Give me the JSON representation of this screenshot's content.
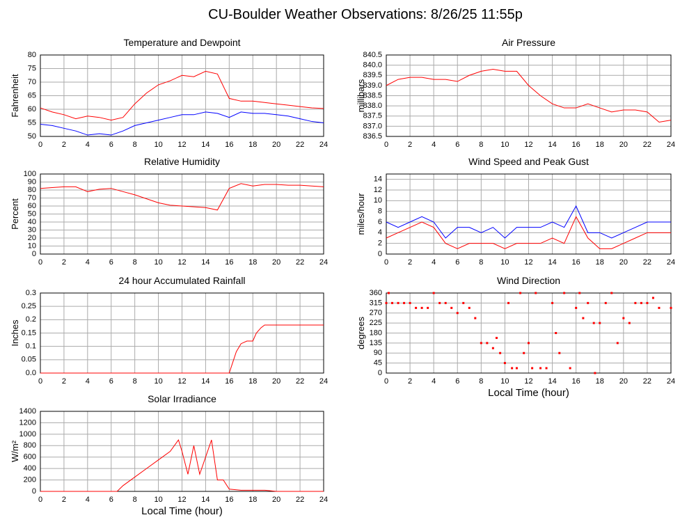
{
  "title": "CU-Boulder Weather Observations: 8/26/25 11:55p",
  "chart_data": [
    {
      "type": "line",
      "title": "Temperature and Dewpoint",
      "ylabel": "Fahrenheit",
      "x": [
        0,
        1,
        2,
        3,
        4,
        5,
        6,
        7,
        8,
        9,
        10,
        11,
        12,
        13,
        14,
        15,
        16,
        17,
        18,
        19,
        20,
        21,
        22,
        23,
        24
      ],
      "series": [
        {
          "color": "#ff0000",
          "values": [
            60.5,
            59,
            58,
            56.5,
            57.5,
            57,
            56,
            57,
            62,
            66,
            69,
            70.5,
            72.5,
            72,
            74,
            73,
            64,
            63,
            63,
            62.5,
            62,
            61.5,
            61,
            60.5,
            60.3
          ]
        },
        {
          "color": "#0000ff",
          "values": [
            54.5,
            54,
            53,
            52,
            50.5,
            51,
            50.5,
            52,
            54,
            55,
            56,
            57,
            58,
            58,
            59,
            58.5,
            57,
            59,
            58.5,
            58.5,
            58,
            57.5,
            56.5,
            55.5,
            55
          ]
        }
      ],
      "xlim": [
        0,
        24
      ],
      "xticks": [
        0,
        2,
        4,
        6,
        8,
        10,
        12,
        14,
        16,
        18,
        20,
        22,
        24
      ],
      "ylim": [
        50,
        80
      ],
      "yticks": [
        50,
        55,
        60,
        65,
        70,
        75,
        80
      ],
      "grid": true
    },
    {
      "type": "line",
      "title": "Air Pressure",
      "ylabel": "millibars",
      "x": [
        0,
        1,
        2,
        3,
        4,
        5,
        6,
        7,
        8,
        9,
        10,
        11,
        12,
        13,
        14,
        15,
        16,
        17,
        18,
        19,
        20,
        21,
        22,
        23,
        24
      ],
      "series": [
        {
          "color": "#ff0000",
          "values": [
            839.0,
            839.3,
            839.4,
            839.4,
            839.3,
            839.3,
            839.2,
            839.5,
            839.7,
            839.8,
            839.7,
            839.7,
            839.0,
            838.5,
            838.1,
            837.9,
            837.9,
            838.1,
            837.9,
            837.7,
            837.8,
            837.8,
            837.7,
            837.2,
            837.3
          ]
        }
      ],
      "xlim": [
        0,
        24
      ],
      "xticks": [
        0,
        2,
        4,
        6,
        8,
        10,
        12,
        14,
        16,
        18,
        20,
        22,
        24
      ],
      "ylim": [
        836.5,
        840.5
      ],
      "yticks": [
        836.5,
        {
          "value": 837,
          "label": "837.0"
        },
        837.5,
        {
          "value": 838,
          "label": "838.0"
        },
        838.5,
        {
          "value": 839,
          "label": "839.0"
        },
        839.5,
        {
          "value": 840,
          "label": "840.0"
        },
        840.5
      ],
      "grid": true
    },
    {
      "type": "line",
      "title": "Relative Humidity",
      "ylabel": "Percent",
      "x": [
        0,
        1,
        2,
        3,
        4,
        5,
        6,
        7,
        8,
        9,
        10,
        11,
        12,
        13,
        14,
        15,
        16,
        17,
        18,
        19,
        20,
        21,
        22,
        23,
        24
      ],
      "series": [
        {
          "color": "#ff0000",
          "values": [
            82,
            83,
            84,
            84,
            78,
            81,
            82,
            78,
            74,
            69,
            64,
            61,
            60,
            59,
            58,
            55,
            82,
            88,
            85,
            87,
            87,
            86,
            86,
            85,
            84
          ]
        }
      ],
      "xlim": [
        0,
        24
      ],
      "xticks": [
        0,
        2,
        4,
        6,
        8,
        10,
        12,
        14,
        16,
        18,
        20,
        22,
        24
      ],
      "ylim": [
        0,
        100
      ],
      "yticks": [
        0,
        10,
        20,
        30,
        40,
        50,
        60,
        70,
        80,
        90,
        100
      ],
      "grid": true
    },
    {
      "type": "line",
      "title": "Wind Speed and Peak Gust",
      "ylabel": "miles/hour",
      "x": [
        0,
        1,
        2,
        3,
        4,
        5,
        6,
        7,
        8,
        9,
        10,
        11,
        12,
        13,
        14,
        15,
        16,
        17,
        18,
        19,
        20,
        21,
        22,
        23,
        24
      ],
      "series": [
        {
          "color": "#0000ff",
          "values": [
            6,
            5,
            6,
            7,
            6,
            3,
            5,
            5,
            4,
            5,
            3,
            5,
            5,
            5,
            6,
            5,
            9,
            4,
            4,
            3,
            4,
            5,
            6,
            6,
            6
          ]
        },
        {
          "color": "#ff0000",
          "values": [
            3,
            4,
            5,
            6,
            5,
            2,
            1,
            2,
            2,
            2,
            1,
            2,
            2,
            2,
            3,
            2,
            7,
            3,
            1,
            1,
            2,
            3,
            4,
            4,
            4
          ]
        }
      ],
      "xlim": [
        0,
        24
      ],
      "xticks": [
        0,
        2,
        4,
        6,
        8,
        10,
        12,
        14,
        16,
        18,
        20,
        22,
        24
      ],
      "ylim": [
        0,
        15
      ],
      "yticks": [
        0,
        2,
        4,
        6,
        8,
        10,
        12,
        14
      ],
      "grid": true
    },
    {
      "type": "line",
      "title": "24 hour Accumulated Rainfall",
      "ylabel": "Inches",
      "x": [
        0,
        16,
        16.3,
        16.6,
        17,
        17.5,
        18,
        18.3,
        18.7,
        19,
        24
      ],
      "series": [
        {
          "color": "#ff0000",
          "values": [
            0,
            0,
            0.04,
            0.08,
            0.11,
            0.12,
            0.12,
            0.15,
            0.17,
            0.18,
            0.18
          ]
        }
      ],
      "xlim": [
        0,
        24
      ],
      "xticks": [
        0,
        2,
        4,
        6,
        8,
        10,
        12,
        14,
        16,
        18,
        20,
        22,
        24
      ],
      "ylim": [
        0,
        0.3
      ],
      "yticks": [
        {
          "value": 0,
          "label": "0.0"
        },
        0.05,
        0.1,
        0.15,
        0.2,
        0.25,
        0.3
      ],
      "grid": true
    },
    {
      "type": "scatter",
      "title": "Wind Direction",
      "ylabel": "degrees",
      "xlabel": "Local Time (hour)",
      "x": [
        0,
        0.2,
        0.5,
        1,
        1.5,
        2,
        2.5,
        3,
        3.5,
        4,
        4.5,
        5,
        5.5,
        6,
        6.5,
        7,
        7.5,
        8,
        8.5,
        9,
        9.3,
        9.6,
        10,
        10.3,
        10.6,
        11,
        11.3,
        11.6,
        12,
        12.3,
        12.6,
        13,
        13.5,
        14,
        14.3,
        14.6,
        15,
        15.5,
        16,
        16.3,
        16.6,
        17,
        17.5,
        17.6,
        18,
        18.5,
        19,
        19.5,
        20,
        20.5,
        21,
        21.5,
        22,
        22.5,
        23,
        24
      ],
      "values": [
        315,
        360,
        315,
        315,
        315,
        315,
        293,
        293,
        293,
        360,
        315,
        315,
        293,
        270,
        315,
        293,
        247,
        135,
        135,
        112,
        158,
        90,
        45,
        315,
        22,
        22,
        360,
        90,
        135,
        22,
        360,
        22,
        22,
        315,
        180,
        90,
        360,
        22,
        293,
        360,
        247,
        315,
        225,
        0,
        225,
        315,
        360,
        135,
        247,
        225,
        315,
        315,
        315,
        338,
        293,
        293
      ],
      "color": "#ff0000",
      "xlim": [
        0,
        24
      ],
      "xticks": [
        0,
        2,
        4,
        6,
        8,
        10,
        12,
        14,
        16,
        18,
        20,
        22,
        24
      ],
      "ylim": [
        0,
        360
      ],
      "yticks": [
        0,
        45,
        90,
        135,
        180,
        225,
        270,
        315,
        360
      ],
      "grid": true
    },
    {
      "type": "line",
      "title": "Solar Irradiance",
      "ylabel": "W/m²",
      "xlabel": "Local Time (hour)",
      "x": [
        0,
        6,
        6.5,
        7,
        8,
        9,
        10,
        11,
        11.7,
        12,
        12.5,
        13,
        13.5,
        14,
        14.5,
        15,
        15.5,
        16,
        17,
        18,
        19,
        20,
        24
      ],
      "series": [
        {
          "color": "#ff0000",
          "values": [
            0,
            0,
            0,
            100,
            250,
            400,
            550,
            700,
            900,
            700,
            300,
            800,
            300,
            600,
            900,
            200,
            200,
            40,
            20,
            20,
            20,
            0,
            0
          ]
        }
      ],
      "xlim": [
        0,
        24
      ],
      "xticks": [
        0,
        2,
        4,
        6,
        8,
        10,
        12,
        14,
        16,
        18,
        20,
        22,
        24
      ],
      "ylim": [
        0,
        1400
      ],
      "yticks": [
        0,
        200,
        400,
        600,
        800,
        1000,
        1200,
        1400
      ],
      "grid": true
    }
  ]
}
